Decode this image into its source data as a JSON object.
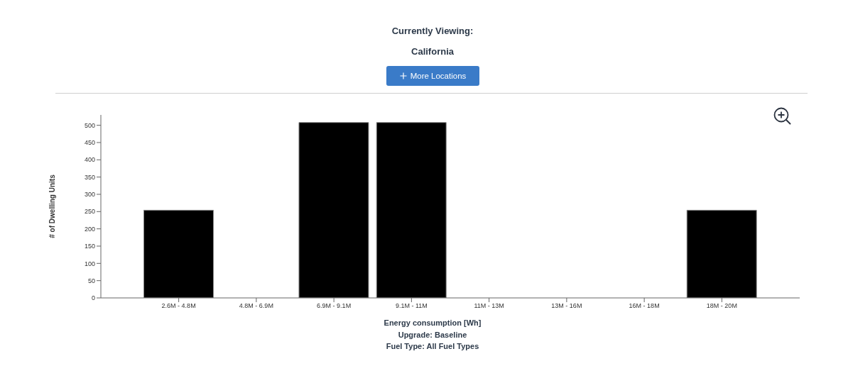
{
  "chart_data": {
    "type": "bar",
    "title": "Currently Viewing:",
    "subtitle": "California",
    "xlabel": "Energy consumption [Wh]",
    "ylabel": "# of Dwelling Units",
    "annotations": [
      "More Locations",
      "Upgrade: Baseline",
      "Fuel Type: All Fuel Types"
    ],
    "categories": [
      "2.6M - 4.8M",
      "4.8M - 6.9M",
      "6.9M - 9.1M",
      "9.1M - 11M",
      "11M - 13M",
      "13M - 16M",
      "16M - 18M",
      "18M - 20M"
    ],
    "values": [
      254,
      0,
      508,
      508,
      0,
      0,
      0,
      254
    ],
    "color": "#000000",
    "ylim": [
      0,
      530
    ],
    "yticks": [
      0,
      50,
      100,
      150,
      200,
      250,
      300,
      350,
      400,
      450,
      500
    ],
    "grid": false
  }
}
